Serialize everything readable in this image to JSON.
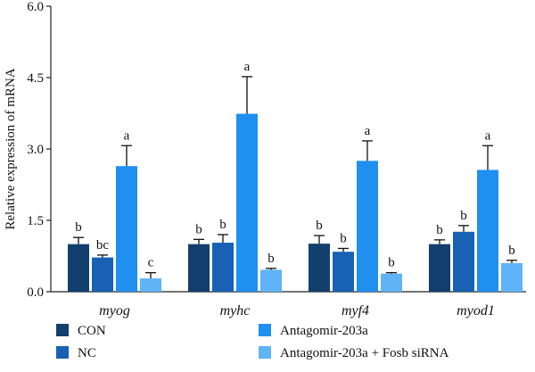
{
  "chart_data": {
    "type": "bar",
    "ylabel": "Relative expression of mRNA",
    "xlabel": "",
    "ylim": [
      0,
      6.0
    ],
    "yticks": [
      "0.0",
      "1.5",
      "3.0",
      "4.5",
      "6.0"
    ],
    "categories": [
      "myog",
      "myhc",
      "myf4",
      "myod1"
    ],
    "series": [
      {
        "name": "CON",
        "color": "#123f6e",
        "values": [
          1.0,
          1.0,
          1.01,
          1.0
        ],
        "errors": [
          0.14,
          0.1,
          0.17,
          0.09
        ],
        "labels": [
          "b",
          "b",
          "b",
          "b"
        ]
      },
      {
        "name": "NC",
        "color": "#1861b5",
        "values": [
          0.72,
          1.03,
          0.84,
          1.26
        ],
        "errors": [
          0.05,
          0.17,
          0.07,
          0.13
        ],
        "labels": [
          "bc",
          "b",
          "b",
          "b"
        ]
      },
      {
        "name": "Antagomir-203a",
        "color": "#1f8ff0",
        "values": [
          2.64,
          3.74,
          2.75,
          2.56
        ],
        "errors": [
          0.43,
          0.78,
          0.42,
          0.51
        ],
        "labels": [
          "a",
          "a",
          "a",
          "a"
        ]
      },
      {
        "name": "Antagomir-203a + Fosb siRNA",
        "color": "#5fb3f7",
        "values": [
          0.28,
          0.46,
          0.38,
          0.6
        ],
        "errors": [
          0.12,
          0.03,
          0.02,
          0.06
        ],
        "labels": [
          "c",
          "b",
          "b",
          "b"
        ]
      }
    ],
    "grid": false,
    "legend_position": "bottom"
  }
}
